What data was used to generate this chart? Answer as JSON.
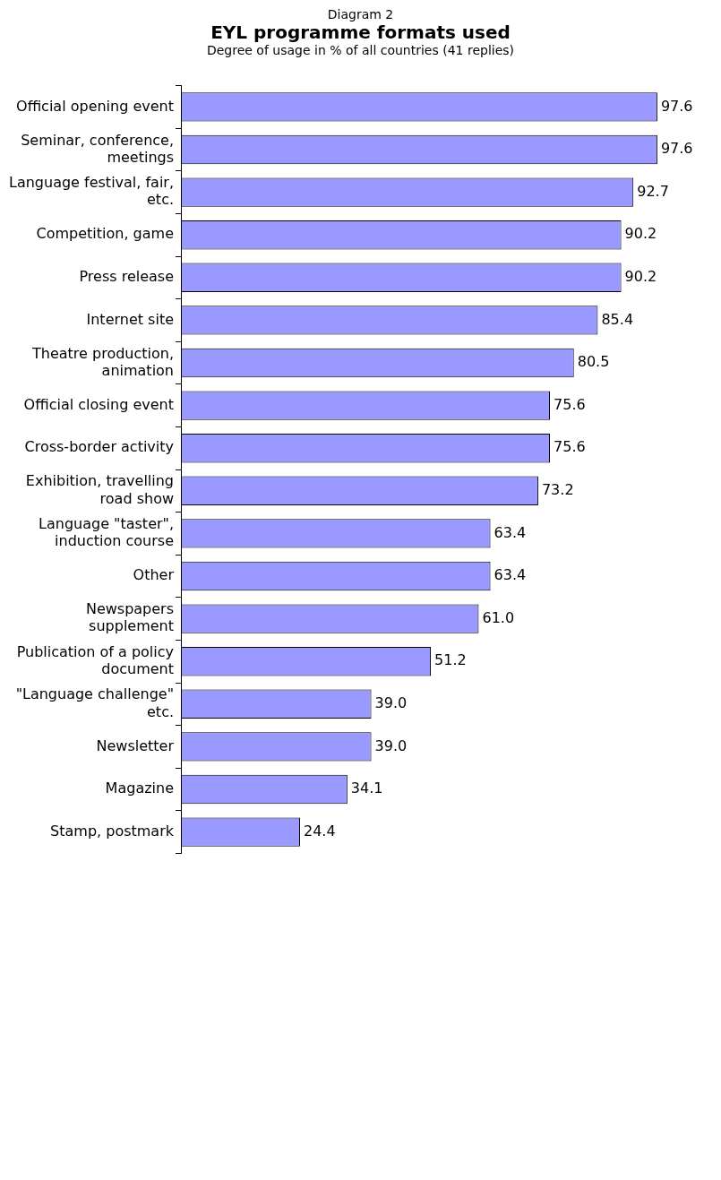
{
  "chart_data": {
    "type": "bar",
    "orientation": "horizontal",
    "title": "EYL programme formats used",
    "subtitle": "Degree of usage in % of all countries (41 replies)",
    "annotations": [
      "Diagram 2"
    ],
    "categories": [
      "Official opening event",
      "Seminar, conference,\nmeetings",
      "Language festival, fair,\netc.",
      "Competition, game",
      "Press release",
      "Internet site",
      "Theatre production,\nanimation",
      "Official closing event",
      "Cross-border activity",
      "Exhibition, travelling\nroad show",
      "Language \"taster\",\ninduction course",
      "Other",
      "Newspapers\nsupplement",
      "Publication of a policy\ndocument",
      "\"Language challenge\"\netc.",
      "Newsletter",
      "Magazine",
      "Stamp, postmark"
    ],
    "values": [
      97.6,
      97.6,
      92.7,
      90.2,
      90.2,
      85.4,
      80.5,
      75.6,
      75.6,
      73.2,
      63.4,
      63.4,
      61.0,
      51.2,
      39.0,
      39.0,
      34.1,
      24.4
    ],
    "value_labels": [
      "97.6",
      "97.6",
      "92.7",
      "90.2",
      "90.2",
      "85.4",
      "80.5",
      "75.6",
      "75.6",
      "73.2",
      "63.4",
      "63.4",
      "61.0",
      "51.2",
      "39.0",
      "39.0",
      "34.1",
      "24.4"
    ],
    "color": "#9999ff",
    "grid": false,
    "legend": false
  }
}
